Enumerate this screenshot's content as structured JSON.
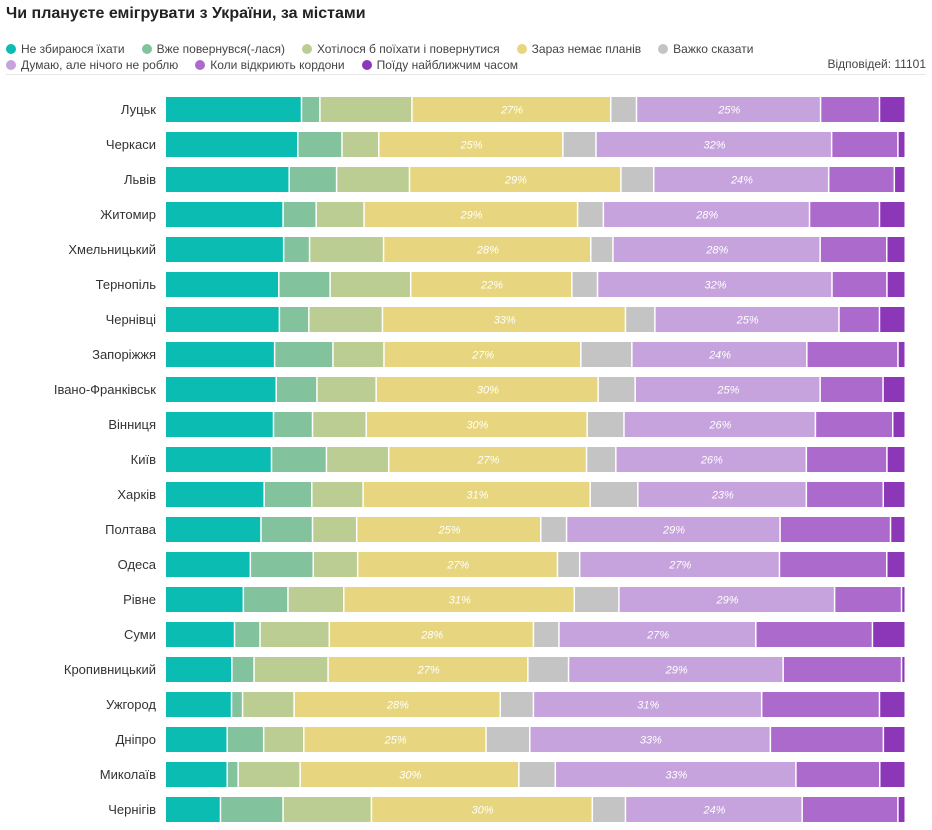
{
  "title": "Чи плануєте емігрувати з України, за містами",
  "responses_label": "Відповідей: 11101",
  "chart_data": {
    "type": "bar",
    "orientation": "horizontal",
    "stacked": true,
    "normalized": true,
    "title": "Чи плануєте емігрувати з України, за містами",
    "legend_position": "top-left",
    "categories": [
      "Луцьк",
      "Черкаси",
      "Львів",
      "Житомир",
      "Хмельницький",
      "Тернопіль",
      "Чернівці",
      "Запоріжжя",
      "Івано-Франківськ",
      "Вінниця",
      "Київ",
      "Харків",
      "Полтава",
      "Одеса",
      "Рівне",
      "Суми",
      "Кропивницький",
      "Ужгород",
      "Дніпро",
      "Миколаїв",
      "Чернігів"
    ],
    "series": [
      {
        "name": "Не збираюся їхати",
        "color": "#0abcb1",
        "values": [
          18.5,
          18.0,
          17.0,
          16.0,
          16.0,
          15.5,
          15.5,
          15.0,
          15.0,
          14.7,
          14.5,
          13.5,
          13.0,
          11.5,
          10.5,
          9.5,
          9.0,
          9.0,
          8.5,
          8.5,
          7.5
        ]
      },
      {
        "name": "Вже повернувся(-лася)",
        "color": "#82c39e",
        "values": [
          2.5,
          6.0,
          6.5,
          4.5,
          3.5,
          7.0,
          4.0,
          8.0,
          5.5,
          5.3,
          7.5,
          6.5,
          7.0,
          8.5,
          6.0,
          3.5,
          3.0,
          1.5,
          5.0,
          1.5,
          8.5
        ]
      },
      {
        "name": "Хотілося б поїхати і повернутися",
        "color": "#bccd93",
        "values": [
          12.5,
          5.0,
          10.0,
          6.5,
          10.0,
          11.0,
          10.0,
          7.0,
          8.0,
          7.3,
          8.5,
          7.0,
          6.0,
          6.0,
          7.5,
          9.5,
          10.0,
          7.0,
          5.5,
          8.5,
          12.0
        ]
      },
      {
        "name": "Зараз немає планів",
        "color": "#e7d67f",
        "values": [
          27,
          25,
          29,
          29,
          28,
          22,
          33,
          27,
          30,
          30,
          27,
          31,
          25,
          27,
          31,
          28,
          27,
          28,
          25,
          30,
          30
        ]
      },
      {
        "name": "Важко сказати",
        "color": "#c4c4c4",
        "values": [
          3.5,
          4.5,
          4.5,
          3.5,
          3.0,
          3.5,
          4.0,
          7.0,
          5.0,
          5.0,
          4.0,
          6.5,
          3.5,
          3.0,
          6.0,
          3.5,
          5.5,
          4.5,
          6.0,
          5.0,
          4.5
        ]
      },
      {
        "name": "Думаю, але нічого не роблю",
        "color": "#c7a3dd",
        "values": [
          25,
          32,
          24,
          28,
          28,
          32,
          25,
          24,
          25,
          26,
          26,
          23,
          29,
          27,
          29,
          27,
          29,
          31,
          33,
          33,
          24
        ]
      },
      {
        "name": "Коли відкриють кордони",
        "color": "#ad6acd",
        "values": [
          8.0,
          9.0,
          9.0,
          9.5,
          9.0,
          7.5,
          5.5,
          12.5,
          8.5,
          10.5,
          11.0,
          10.5,
          15.0,
          14.5,
          9.0,
          16.0,
          16.0,
          16.0,
          15.5,
          11.5,
          13.0
        ]
      },
      {
        "name": "Поїду найближчим часом",
        "color": "#8c37b8",
        "values": [
          3.5,
          1.0,
          1.5,
          3.5,
          2.5,
          2.5,
          3.5,
          1.0,
          3.0,
          1.7,
          2.5,
          3.0,
          2.0,
          2.5,
          0.5,
          4.5,
          0.5,
          3.5,
          3.0,
          3.5,
          1.0
        ]
      }
    ],
    "data_labels": {
      "series": "Зараз немає планів|Думаю, але нічого не роблю",
      "format": "{value}%"
    }
  }
}
